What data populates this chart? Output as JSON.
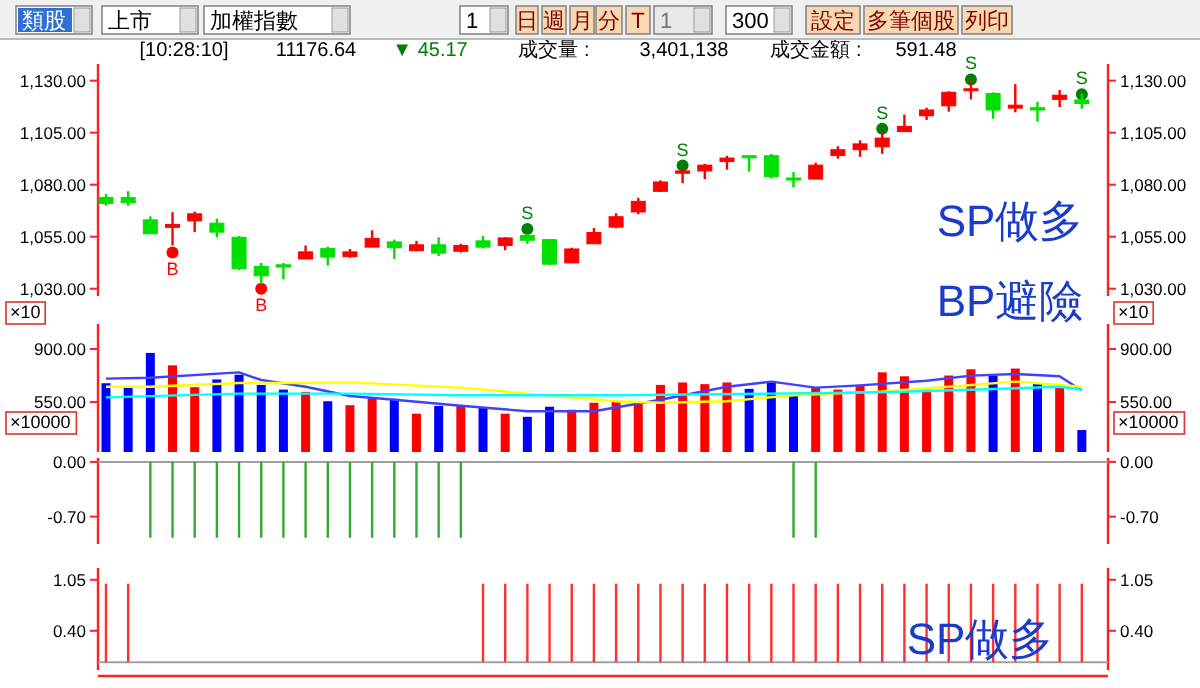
{
  "chart_data": [
    {
      "type": "other",
      "annotations": [
        "類股",
        "上市",
        "加權指數",
        "1",
        "日",
        "週",
        "月",
        "分",
        "T",
        "1",
        "300",
        "設定",
        "多筆個股",
        "列印",
        "[10:28:10]",
        "11176.64",
        "▼ 45.17",
        "成交量 :",
        "3,401,138",
        "成交金額 :",
        "591.48"
      ]
    },
    {
      "type": "candlestick",
      "categories": [
        null,
        null,
        null,
        null,
        null,
        null,
        null,
        null,
        null,
        null,
        null,
        null,
        null,
        null,
        null,
        null,
        null,
        null,
        null,
        null,
        null,
        null,
        null,
        null,
        null,
        null,
        null,
        null,
        null,
        null,
        null,
        null,
        null,
        null,
        null,
        null,
        null,
        null,
        null,
        null,
        null,
        null,
        null,
        null,
        null
      ],
      "ohlc": [
        [
          1073.8,
          1075.5,
          1069.9,
          1071.0
        ],
        [
          1073.8,
          1076.9,
          1069.9,
          1071.3
        ],
        [
          1063.1,
          1064.8,
          1056.4,
          1056.4
        ],
        [
          1059.5,
          1066.8,
          1050.8,
          1060.9
        ],
        [
          1062.6,
          1067.1,
          1057.2,
          1066.0
        ],
        [
          1061.5,
          1063.7,
          1054.7,
          1057.2
        ],
        [
          1054.7,
          1055.3,
          1039.0,
          1039.6
        ],
        [
          1040.7,
          1042.4,
          1032.2,
          1036.2
        ],
        [
          1041.5,
          1042.4,
          1034.5,
          1040.4
        ],
        [
          1044.3,
          1050.8,
          1044.3,
          1047.7
        ],
        [
          1049.4,
          1050.2,
          1041.2,
          1045.2
        ],
        [
          1045.4,
          1049.1,
          1044.9,
          1047.7
        ],
        [
          1050.0,
          1058.1,
          1050.0,
          1054.2
        ],
        [
          1052.5,
          1053.6,
          1044.3,
          1049.7
        ],
        [
          1048.3,
          1053.0,
          1048.0,
          1051.1
        ],
        [
          1051.1,
          1054.7,
          1045.7,
          1047.1
        ],
        [
          1048.0,
          1051.6,
          1047.4,
          1050.8
        ],
        [
          1053.0,
          1055.3,
          1049.4,
          1050.0
        ],
        [
          1050.8,
          1054.7,
          1048.5,
          1054.4
        ],
        [
          1055.6,
          1056.4,
          1051.6,
          1053.3
        ],
        [
          1053.6,
          1053.9,
          1041.5,
          1041.8
        ],
        [
          1042.4,
          1049.7,
          1042.4,
          1049.1
        ],
        [
          1051.6,
          1059.2,
          1051.6,
          1057.0
        ],
        [
          1059.6,
          1066.3,
          1059.0,
          1064.6
        ],
        [
          1066.9,
          1073.7,
          1065.8,
          1072.0
        ],
        [
          1076.8,
          1082.1,
          1076.5,
          1081.3
        ],
        [
          1085.5,
          1087.7,
          1080.7,
          1086.6
        ],
        [
          1086.6,
          1090.0,
          1082.7,
          1089.4
        ],
        [
          1091.1,
          1093.9,
          1087.2,
          1092.8
        ],
        [
          1093.9,
          1093.9,
          1086.3,
          1093.1
        ],
        [
          1093.9,
          1094.8,
          1083.0,
          1083.8
        ],
        [
          1083.2,
          1086.1,
          1078.7,
          1082.4
        ],
        [
          1082.7,
          1090.6,
          1082.7,
          1089.4
        ],
        [
          1094.0,
          1098.5,
          1092.5,
          1096.8
        ],
        [
          1096.8,
          1101.3,
          1093.4,
          1099.6
        ],
        [
          1098.2,
          1105.2,
          1094.8,
          1102.4
        ],
        [
          1105.5,
          1113.7,
          1105.5,
          1108.0
        ],
        [
          1113.1,
          1117.0,
          1111.1,
          1115.9
        ],
        [
          1117.9,
          1124.9,
          1115.1,
          1124.4
        ],
        [
          1125.2,
          1130.0,
          1121.0,
          1126.1
        ],
        [
          1123.8,
          1124.4,
          1111.7,
          1115.9
        ],
        [
          1116.8,
          1128.3,
          1114.8,
          1118.2
        ],
        [
          1117.0,
          1119.9,
          1110.3,
          1115.9
        ],
        [
          1121.0,
          1125.5,
          1117.3,
          1123.0
        ],
        [
          1120.7,
          1123.8,
          1116.5,
          1119.0
        ]
      ],
      "colors": [
        "#00e000",
        "#00e000",
        "#00e000",
        "#ff0000",
        "#ff0000",
        "#00e000",
        "#00e000",
        "#00e000",
        "#00e000",
        "#ff0000",
        "#00e000",
        "#ff0000",
        "#ff0000",
        "#00e000",
        "#ff0000",
        "#00e000",
        "#ff0000",
        "#00e000",
        "#ff0000",
        "#00e000",
        "#00e000",
        "#ff0000",
        "#ff0000",
        "#ff0000",
        "#ff0000",
        "#ff0000",
        "#ff0000",
        "#ff0000",
        "#ff0000",
        "#00e000",
        "#00e000",
        "#00e000",
        "#ff0000",
        "#ff0000",
        "#ff0000",
        "#ff0000",
        "#ff0000",
        "#ff0000",
        "#ff0000",
        "#ff0000",
        "#00e000",
        "#ff0000",
        "#00e000",
        "#ff0000",
        "#00e000"
      ],
      "series": [
        {
          "type": "scatter",
          "color": "#008000",
          "values": [
            null,
            null,
            null,
            null,
            null,
            null,
            null,
            null,
            null,
            null,
            null,
            null,
            null,
            null,
            null,
            null,
            null,
            null,
            null,
            1058.7,
            null,
            null,
            null,
            null,
            null,
            null,
            1089.2,
            null,
            null,
            null,
            null,
            null,
            null,
            null,
            null,
            1106.9,
            null,
            null,
            null,
            1130.6,
            null,
            null,
            null,
            null,
            1123.5
          ],
          "value_labels": [
            null,
            null,
            null,
            null,
            null,
            null,
            null,
            null,
            null,
            null,
            null,
            null,
            null,
            null,
            null,
            null,
            null,
            null,
            null,
            "S",
            null,
            null,
            null,
            null,
            null,
            null,
            "S",
            null,
            null,
            null,
            null,
            null,
            null,
            null,
            null,
            "S",
            null,
            null,
            null,
            "S",
            null,
            null,
            null,
            null,
            "S"
          ]
        },
        {
          "type": "scatter",
          "color": "#ff0000",
          "values": [
            null,
            null,
            null,
            1047.4,
            null,
            null,
            null,
            1030.0,
            null,
            null,
            null,
            null,
            null,
            null,
            null,
            null,
            null,
            null,
            null,
            null,
            null,
            null,
            null,
            null,
            null,
            null,
            null,
            null,
            null,
            null,
            null,
            null,
            null,
            null,
            null,
            null,
            null,
            null,
            null,
            null,
            null,
            null,
            null,
            null,
            null
          ],
          "value_labels": [
            null,
            null,
            null,
            "B",
            null,
            null,
            null,
            "B",
            null,
            null,
            null,
            null,
            null,
            null,
            null,
            null,
            null,
            null,
            null,
            null,
            null,
            null,
            null,
            null,
            null,
            null,
            null,
            null,
            null,
            null,
            null,
            null,
            null,
            null,
            null,
            null,
            null,
            null,
            null,
            null,
            null,
            null,
            null,
            null,
            null
          ]
        }
      ],
      "marker": "circle",
      "ylim": [
        1026.5,
        1138
      ],
      "yticks": [
        {
          "value": 1030,
          "label": "1,030.00"
        },
        {
          "value": 1055,
          "label": "1,055.00"
        },
        {
          "value": 1080,
          "label": "1,080.00"
        },
        {
          "value": 1105,
          "label": "1,105.00"
        },
        {
          "value": 1130,
          "label": "1,130.00"
        }
      ],
      "y2lim": [
        1026.5,
        1138
      ],
      "y2ticks": [
        {
          "value": 1030,
          "label": "1,030.00"
        },
        {
          "value": 1055,
          "label": "1,055.00"
        },
        {
          "value": 1080,
          "label": "1,080.00"
        },
        {
          "value": 1105,
          "label": "1,105.00"
        },
        {
          "value": 1130,
          "label": "1,130.00"
        }
      ],
      "annotations": [
        "SP做多",
        "BP避險"
      ]
    },
    {
      "type": "bar",
      "categories": [
        null,
        null,
        null,
        null,
        null,
        null,
        null,
        null,
        null,
        null,
        null,
        null,
        null,
        null,
        null,
        null,
        null,
        null,
        null,
        null,
        null,
        null,
        null,
        null,
        null,
        null,
        null,
        null,
        null,
        null,
        null,
        null,
        null,
        null,
        null,
        null,
        null,
        null,
        null,
        null,
        null,
        null,
        null,
        null,
        null
      ],
      "series": [
        {
          "type": "bar",
          "values": [
            674,
            648,
            874,
            792,
            648,
            699,
            730,
            663,
            632,
            617,
            555,
            529,
            576,
            571,
            473,
            524,
            524,
            514,
            473,
            452,
            519,
            499,
            545,
            550,
            550,
            663,
            679,
            668,
            679,
            637,
            689,
            596,
            648,
            632,
            663,
            746,
            720,
            632,
            725,
            766,
            725,
            771,
            668,
            643,
            365
          ],
          "colors": [
            "#0000ff",
            "#0000ff",
            "#0000ff",
            "#ff0000",
            "#ff0000",
            "#0000ff",
            "#0000ff",
            "#0000ff",
            "#0000ff",
            "#ff0000",
            "#0000ff",
            "#ff0000",
            "#ff0000",
            "#0000ff",
            "#ff0000",
            "#0000ff",
            "#ff0000",
            "#0000ff",
            "#ff0000",
            "#0000ff",
            "#0000ff",
            "#ff0000",
            "#ff0000",
            "#ff0000",
            "#ff0000",
            "#ff0000",
            "#ff0000",
            "#ff0000",
            "#ff0000",
            "#0000ff",
            "#0000ff",
            "#0000ff",
            "#ff0000",
            "#ff0000",
            "#ff0000",
            "#ff0000",
            "#ff0000",
            "#ff0000",
            "#ff0000",
            "#ff0000",
            "#0000ff",
            "#ff0000",
            "#0000ff",
            "#ff0000",
            "#0000ff"
          ]
        },
        {
          "type": "line",
          "color": "#4040ff",
          "values": [
            705,
            null,
            710,
            null,
            null,
            null,
            745,
            695,
            null,
            650,
            null,
            590,
            null,
            565,
            null,
            null,
            525,
            null,
            null,
            490,
            null,
            null,
            490,
            null,
            null,
            565,
            null,
            null,
            650,
            null,
            685,
            null,
            645,
            null,
            660,
            null,
            null,
            690,
            null,
            725,
            null,
            735,
            null,
            720,
            625
          ]
        },
        {
          "type": "line",
          "color": "#ffff00",
          "values": [
            650,
            null,
            650,
            null,
            null,
            null,
            675,
            null,
            null,
            675,
            null,
            680,
            null,
            null,
            null,
            null,
            645,
            null,
            null,
            605,
            null,
            null,
            null,
            555,
            null,
            545,
            null,
            null,
            555,
            null,
            null,
            595,
            null,
            null,
            null,
            620,
            null,
            null,
            650,
            null,
            null,
            685,
            null,
            null,
            650
          ]
        },
        {
          "type": "line",
          "color": "#00ffff",
          "values": [
            580,
            null,
            null,
            null,
            null,
            null,
            605,
            null,
            null,
            null,
            null,
            605,
            null,
            null,
            null,
            null,
            595,
            null,
            null,
            null,
            null,
            null,
            null,
            595,
            null,
            null,
            null,
            null,
            null,
            null,
            605,
            null,
            null,
            null,
            null,
            615,
            null,
            null,
            null,
            630,
            null,
            null,
            null,
            650,
            630
          ]
        }
      ],
      "ylim": [
        220,
        1065
      ],
      "yticks": [
        {
          "value": 900,
          "label": "900.00"
        },
        {
          "value": 550,
          "label": "550.00"
        }
      ],
      "y2lim": [
        220,
        1065
      ],
      "y2ticks": [
        {
          "value": 900,
          "label": "900.00"
        },
        {
          "value": 550,
          "label": "550.00"
        }
      ],
      "annotations": [
        "×10",
        "×10",
        "×10000",
        "×10000"
      ]
    },
    {
      "type": "bar",
      "categories": [
        null,
        null,
        null,
        null,
        null,
        null,
        null,
        null,
        null,
        null,
        null,
        null,
        null,
        null,
        null,
        null,
        null,
        null,
        null,
        null,
        null,
        null,
        null,
        null,
        null,
        null,
        null,
        null,
        null,
        null,
        null,
        null,
        null,
        null,
        null,
        null,
        null,
        null,
        null,
        null,
        null,
        null,
        null,
        null,
        null
      ],
      "values": [
        null,
        null,
        -0.97,
        -0.97,
        -0.97,
        -0.97,
        -0.97,
        -0.97,
        -0.97,
        -0.97,
        -0.97,
        -0.97,
        -0.97,
        -0.97,
        -0.97,
        -0.97,
        -0.97,
        null,
        null,
        null,
        null,
        null,
        null,
        null,
        null,
        null,
        null,
        null,
        null,
        null,
        null,
        -0.97,
        -0.97,
        null,
        null,
        null,
        null,
        null,
        null,
        null,
        null,
        null,
        null,
        null,
        null
      ],
      "color": "#33aa33",
      "ylim": [
        -1.05,
        0.05
      ],
      "yticks": [
        {
          "value": 0,
          "label": "0.00"
        },
        {
          "value": -0.7,
          "label": "-0.70"
        }
      ],
      "y2lim": [
        -1.05,
        0.05
      ],
      "y2ticks": [
        {
          "value": 0,
          "label": "0.00"
        },
        {
          "value": -0.7,
          "label": "-0.70"
        }
      ],
      "ref_lines": [
        {
          "axis": "y",
          "value": 0,
          "color": "#a0a0a0"
        }
      ]
    },
    {
      "type": "bar",
      "categories": [
        null,
        null,
        null,
        null,
        null,
        null,
        null,
        null,
        null,
        null,
        null,
        null,
        null,
        null,
        null,
        null,
        null,
        null,
        null,
        null,
        null,
        null,
        null,
        null,
        null,
        null,
        null,
        null,
        null,
        null,
        null,
        null,
        null,
        null,
        null,
        null,
        null,
        null,
        null,
        null,
        null,
        null,
        null,
        null,
        null
      ],
      "values": [
        1,
        1,
        null,
        null,
        null,
        null,
        null,
        null,
        null,
        null,
        null,
        null,
        null,
        null,
        null,
        null,
        null,
        1,
        1,
        1,
        1,
        1,
        1,
        1,
        1,
        1,
        1,
        1,
        1,
        1,
        1,
        1,
        1,
        1,
        1,
        1,
        1,
        1,
        1,
        1,
        1,
        1,
        1,
        1,
        1
      ],
      "color": "#ff3030",
      "ylim": [
        -0.1,
        1.2
      ],
      "yticks": [
        {
          "value": 1.05,
          "label": "1.05"
        },
        {
          "value": 0.4,
          "label": "0.40"
        }
      ],
      "y2lim": [
        -0.1,
        1.2
      ],
      "y2ticks": [
        {
          "value": 1.05,
          "label": "1.05"
        },
        {
          "value": 0.4,
          "label": "0.40"
        }
      ],
      "ref_lines": [
        {
          "axis": "y",
          "value": 0,
          "color": "#a0a0a0"
        }
      ],
      "annotations": [
        "SP做多"
      ]
    }
  ]
}
